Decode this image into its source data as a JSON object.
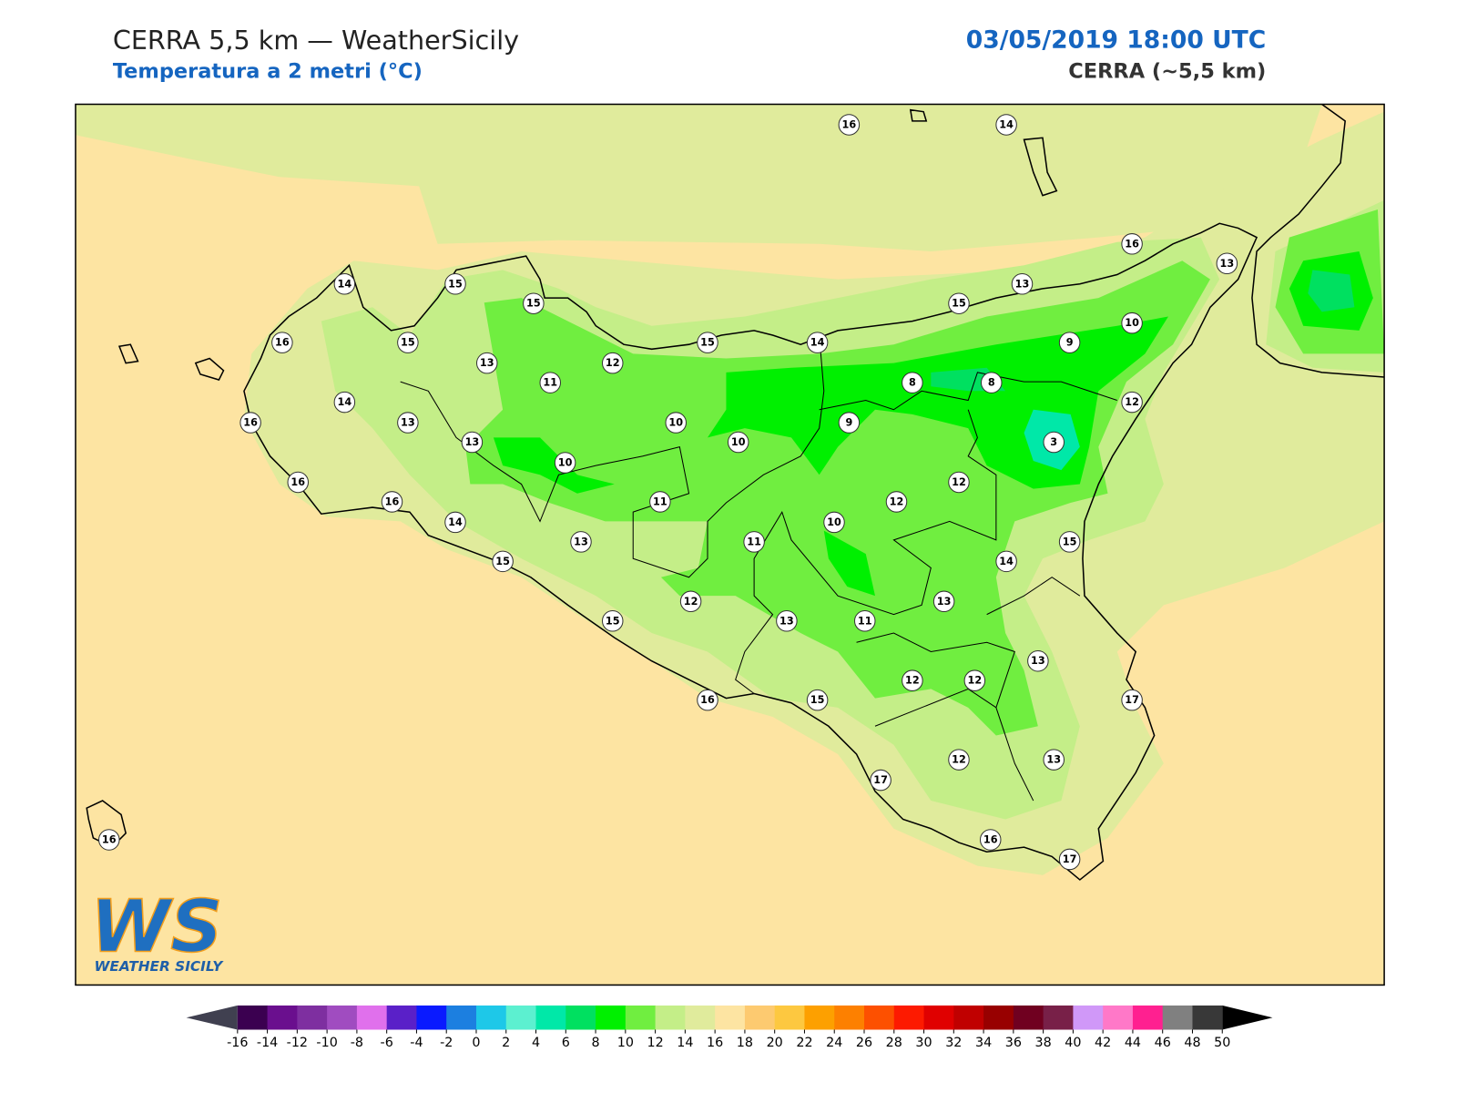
{
  "header": {
    "title": "CERRA 5,5 km — WeatherSicily",
    "subtitle": "Temperatura a 2 metri (°C)",
    "date": "03/05/2019 18:00 UTC",
    "model": "CERRA (~5,5 km)"
  },
  "stations": [
    16,
    14,
    16,
    13,
    14,
    15,
    15,
    13,
    15,
    16,
    15,
    13,
    12,
    15,
    14,
    10,
    9,
    11,
    8,
    8,
    14,
    12,
    16,
    13,
    10,
    9,
    13,
    10,
    3,
    10,
    16,
    12,
    16,
    11,
    12,
    10,
    14,
    13,
    11,
    15,
    15,
    14,
    12,
    13,
    15,
    13,
    11,
    13,
    12,
    12,
    16,
    15,
    17,
    17,
    12,
    13,
    16,
    16,
    17
  ],
  "colorbar": {
    "ticks": [
      -16,
      -14,
      -12,
      -10,
      -8,
      -6,
      -4,
      -2,
      0,
      2,
      4,
      6,
      8,
      10,
      12,
      14,
      16,
      18,
      20,
      22,
      24,
      26,
      28,
      30,
      32,
      34,
      36,
      38,
      40,
      42,
      44,
      46,
      48,
      50
    ],
    "colors": [
      "#3b0050",
      "#6a0f8e",
      "#7e2fa0",
      "#a04cc0",
      "#e070ec",
      "#5a20c8",
      "#0a1aff",
      "#1c7fe0",
      "#1ec8e8",
      "#5cf0d0",
      "#00e8a8",
      "#00e060",
      "#00f000",
      "#70ee40",
      "#c4ee88",
      "#e0eb9c",
      "#fde4a2",
      "#fdca70",
      "#fdc840",
      "#fda000",
      "#fd8000",
      "#fd5000",
      "#fd1a00",
      "#e00000",
      "#c00000",
      "#980000",
      "#700020",
      "#782048",
      "#d098f8",
      "#ff78c8",
      "#ff2090",
      "#808080",
      "#383838"
    ],
    "under_color": "#404050",
    "over_color": "#000000"
  },
  "logo": {
    "mark": "WS",
    "text": "WEATHER SICILY"
  }
}
